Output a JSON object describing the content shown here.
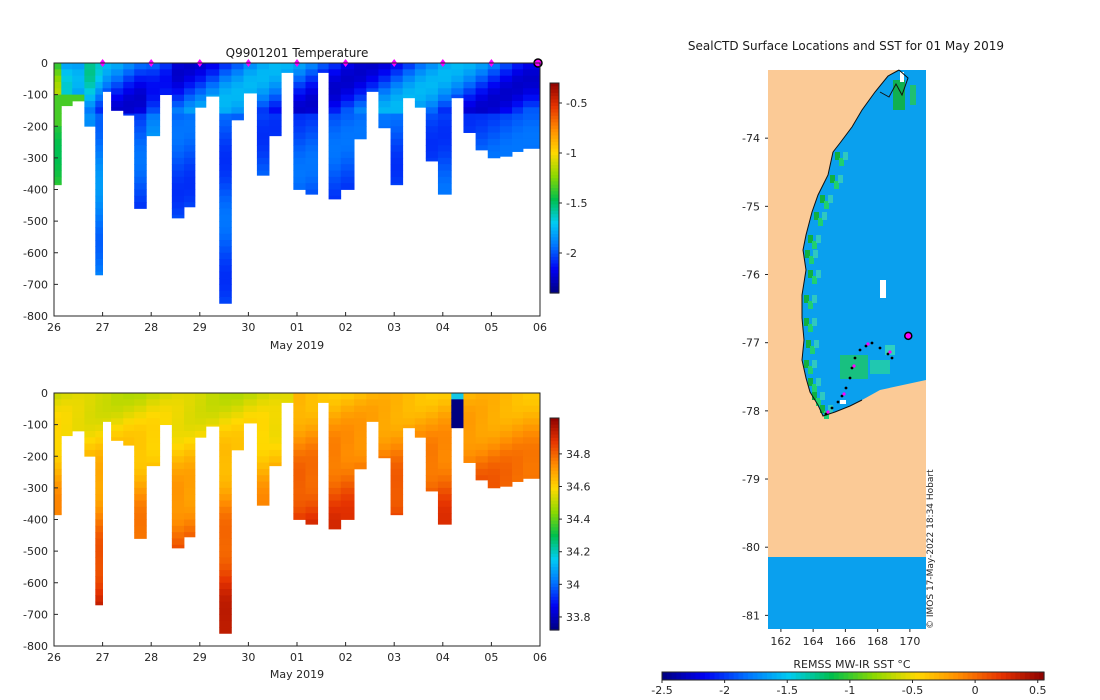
{
  "chart_data": [
    {
      "type": "heatmap",
      "name": "temperature-section",
      "title": "Q9901201  Temperature",
      "xlabel": "May 2019",
      "x_ticks": [
        "26",
        "27",
        "28",
        "29",
        "30",
        "01",
        "02",
        "03",
        "04",
        "05",
        "06"
      ],
      "y_ticks": [
        "0",
        "-100",
        "-200",
        "-300",
        "-400",
        "-500",
        "-600",
        "-700",
        "-800"
      ],
      "ylim": [
        -800,
        0
      ],
      "colorbar_ticks": [
        "-0.5",
        "-1",
        "-1.5",
        "-2"
      ],
      "colorbar_range": [
        -2.4,
        -0.3
      ],
      "profile_days": [
        0.05,
        0.25,
        0.5,
        0.75,
        0.95,
        1.05,
        1.3,
        1.55,
        1.75,
        2.05,
        2.3,
        2.55,
        2.8,
        3.0,
        3.25,
        3.55,
        3.75,
        4.05,
        4.3,
        4.55,
        4.8,
        5.05,
        5.3,
        5.55,
        5.75,
        6.05,
        6.3,
        6.55,
        6.8,
        7.05,
        7.3,
        7.55,
        7.75,
        8.05,
        8.3,
        8.55,
        8.8,
        9.05,
        9.3,
        9.55,
        9.75
      ],
      "profile_depths": [
        385,
        135,
        120,
        200,
        670,
        90,
        150,
        165,
        460,
        230,
        100,
        490,
        455,
        140,
        105,
        760,
        180,
        95,
        355,
        230,
        30,
        400,
        415,
        30,
        430,
        400,
        240,
        90,
        205,
        385,
        110,
        140,
        310,
        415,
        110,
        220,
        275,
        300,
        295,
        280,
        270
      ],
      "surface_temp": [
        -1.4,
        -1.9,
        -2.0,
        -1.8,
        -1.9,
        -2.0,
        -2.0,
        -2.0,
        -2.0,
        -1.9,
        -1.9,
        -2.0,
        -2.0,
        -2.0,
        -2.0,
        -2.0,
        -2.0,
        -2.0,
        -2.0,
        -2.0,
        -2.0,
        -2.0,
        -2.0,
        -2.0,
        -2.0,
        -2.0,
        -2.0,
        -2.0,
        -2.0,
        -2.0,
        -2.0,
        -2.0,
        -2.0,
        -2.0,
        -2.0,
        -2.0,
        -2.0,
        -2.0,
        -2.0,
        -2.0,
        -2.0
      ],
      "markers_days": [
        1,
        2,
        3,
        4,
        5,
        6,
        7,
        8,
        9
      ],
      "current_marker_day": 10
    },
    {
      "type": "heatmap",
      "name": "salinity-section",
      "title": "",
      "xlabel": "May 2019",
      "x_ticks": [
        "26",
        "27",
        "28",
        "29",
        "30",
        "01",
        "02",
        "03",
        "04",
        "05",
        "06"
      ],
      "y_ticks": [
        "0",
        "-100",
        "-200",
        "-300",
        "-400",
        "-500",
        "-600",
        "-700",
        "-800"
      ],
      "ylim": [
        -800,
        0
      ],
      "colorbar_ticks": [
        "34.8",
        "34.6",
        "34.4",
        "34.2",
        "34",
        "33.8"
      ],
      "colorbar_range": [
        33.72,
        35.02
      ],
      "anomaly_day": 8.4
    },
    {
      "type": "heatmap",
      "name": "sst-map",
      "title": "SealCTD Surface Locations and SST for 01 May 2019",
      "x_ticks": [
        "162",
        "164",
        "166",
        "168",
        "170"
      ],
      "y_ticks": [
        "-74",
        "-75",
        "-76",
        "-77",
        "-78",
        "-79",
        "-80",
        "-81"
      ],
      "xlim": [
        161.2,
        171.0
      ],
      "ylim": [
        -81.2,
        -73.0
      ],
      "colorbar_label": "REMSS MW-IR SST °C",
      "colorbar_ticks": [
        "-2.5",
        "-2",
        "-1.5",
        "-1",
        "-0.5",
        "0",
        "0.5"
      ],
      "colorbar_range": [
        -2.5,
        0.55
      ],
      "swath_gap_lat": [
        -80.0,
        -78.0
      ],
      "current_position": {
        "lon": 169.9,
        "lat": -76.9
      }
    }
  ],
  "watermark": "© IMOS 17-May-2022 18:34 Hobart",
  "colors": {
    "land": "#fbca96",
    "sea": "#0aa0ee",
    "marker": "#ff00ff"
  }
}
